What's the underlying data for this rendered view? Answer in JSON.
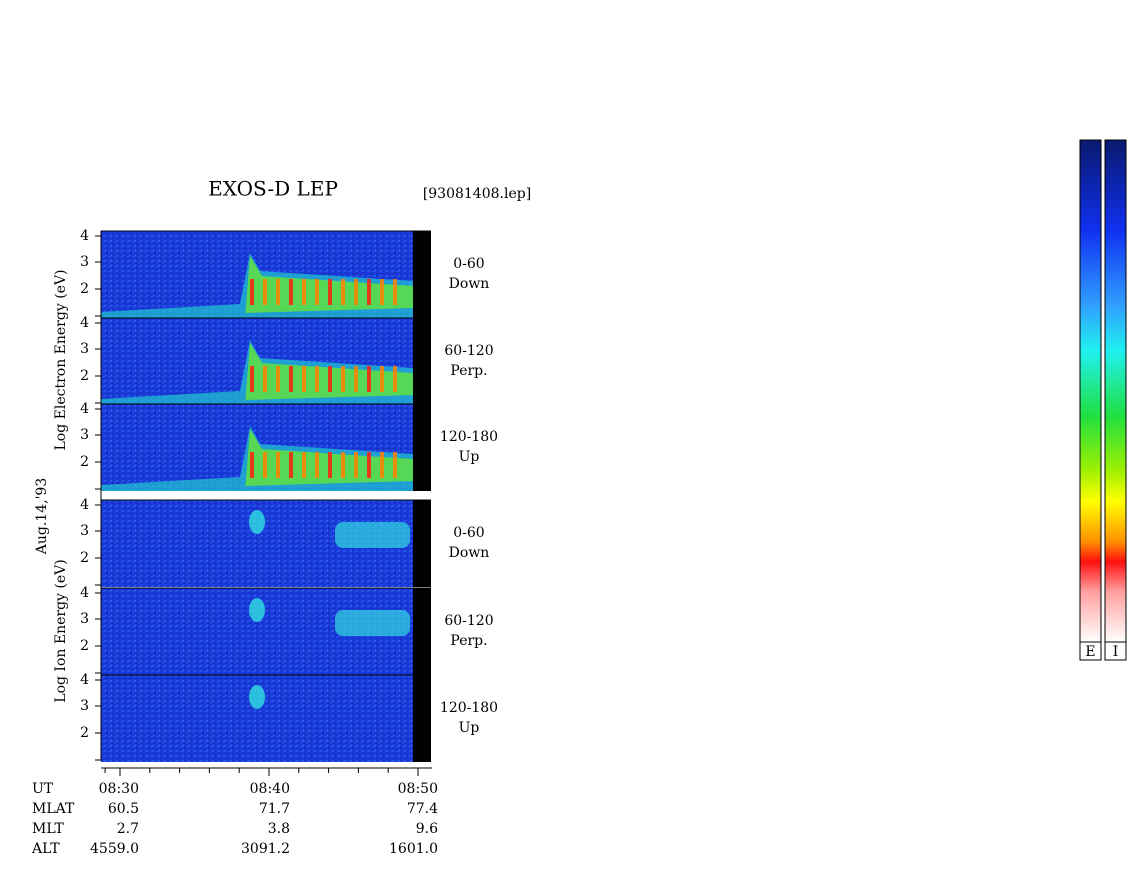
{
  "title": "EXOS-D LEP",
  "file_name": "[93081408.lep]",
  "date": "Aug.14,'93",
  "electron_axis_label": "Log  Electron  Energy (eV)",
  "ion_axis_label": "Log  Ion  Energy (eV)",
  "y_tick_labels": [
    "4",
    "3",
    "2"
  ],
  "electron_panels": [
    {
      "pitch_angle": "0-60",
      "direction": "Down"
    },
    {
      "pitch_angle": "60-120",
      "direction": "Perp."
    },
    {
      "pitch_angle": "120-180",
      "direction": "Up"
    }
  ],
  "ion_panels": [
    {
      "pitch_angle": "0-60",
      "direction": "Down"
    },
    {
      "pitch_angle": "60-120",
      "direction": "Perp."
    },
    {
      "pitch_angle": "120-180",
      "direction": "Up"
    }
  ],
  "orbit_table": {
    "rows": [
      [
        "UT",
        "08:30",
        "08:40",
        "08:50"
      ],
      [
        "MLAT",
        "60.5",
        "71.7",
        "77.4"
      ],
      [
        "MLT",
        "2.7",
        "3.8",
        "9.6"
      ],
      [
        "ALT",
        "4559.0",
        "3091.2",
        "1601.0"
      ]
    ]
  },
  "color_bars": [
    "E",
    "I"
  ]
}
